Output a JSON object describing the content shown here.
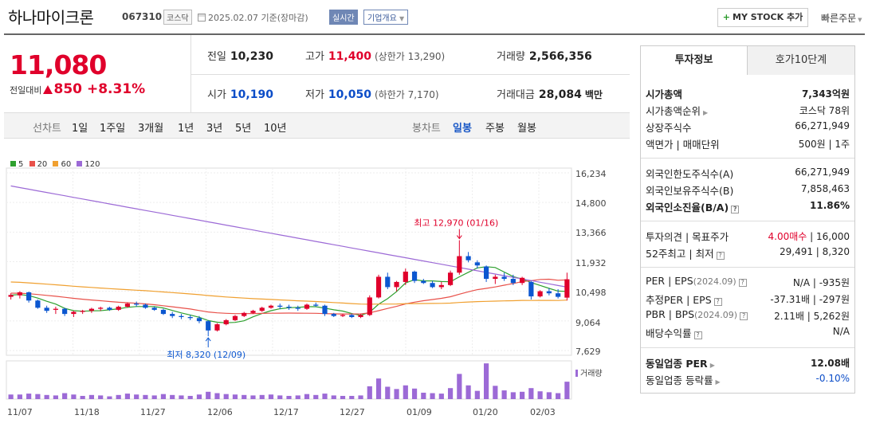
{
  "header": {
    "name": "하나마이크론",
    "code": "067310",
    "market": "코스닥",
    "date": "2025.02.07 기준(장마감)",
    "realtime": "실시간",
    "overview": "기업개요",
    "mystock": "MY STOCK 추가",
    "quick_order": "빠른주문"
  },
  "price": {
    "current": "11,080",
    "change_label": "전일대비",
    "change_amount": "850",
    "change_pct": "+8.31%",
    "prev_close_label": "전일",
    "prev_close": "10,230",
    "open_label": "시가",
    "open": "10,190",
    "high_label": "고가",
    "high": "11,400",
    "upper_limit": "(상한가 13,290)",
    "low_label": "저가",
    "low": "10,050",
    "lower_limit": "(하한가 7,170)",
    "volume_label": "거래량",
    "volume": "2,566,356",
    "amount_label": "거래대금",
    "amount": "28,084",
    "amount_unit": "백만"
  },
  "periods": {
    "line_label": "선차트",
    "line_items": [
      "1일",
      "1주일",
      "3개월",
      "1년",
      "3년",
      "5년",
      "10년"
    ],
    "candle_label": "봉차트",
    "candle_items": [
      "일봉",
      "주봉",
      "월봉"
    ],
    "selected": "일봉"
  },
  "chart_data": {
    "type": "candlestick",
    "legend": [
      {
        "name": "5",
        "color": "#2ea02e"
      },
      {
        "name": "20",
        "color": "#e8514a"
      },
      {
        "name": "60",
        "color": "#f0a030"
      },
      {
        "name": "120",
        "color": "#9c6ad6"
      }
    ],
    "y_ticks": [
      "16,234",
      "14,800",
      "13,366",
      "11,932",
      "10,498",
      "9,064",
      "7,629"
    ],
    "ylim": [
      7629,
      16234
    ],
    "x_ticks": [
      "11/07",
      "11/18",
      "11/27",
      "12/06",
      "12/17",
      "12/27",
      "01/09",
      "01/20",
      "02/03"
    ],
    "volume_label": "거래량",
    "annotation_high": "최고 12,970 (01/16)",
    "annotation_low": "최저 8,320 (12/09)",
    "candles": [
      [
        10230,
        10400,
        10100,
        10320,
        1.0
      ],
      [
        10300,
        10500,
        10150,
        10450,
        1.0
      ],
      [
        10450,
        10480,
        9950,
        10050,
        1.2
      ],
      [
        10050,
        10100,
        9650,
        9700,
        1.1
      ],
      [
        9700,
        9800,
        9450,
        9550,
        0.9
      ],
      [
        9600,
        9750,
        9400,
        9650,
        0.8
      ],
      [
        9650,
        9700,
        9300,
        9400,
        1.3
      ],
      [
        9400,
        9550,
        9250,
        9500,
        1.0
      ],
      [
        9500,
        9600,
        9400,
        9550,
        0.7
      ],
      [
        9550,
        9700,
        9450,
        9650,
        0.9
      ],
      [
        9650,
        9750,
        9550,
        9700,
        0.8
      ],
      [
        9700,
        9750,
        9550,
        9600,
        0.6
      ],
      [
        9600,
        9800,
        9550,
        9750,
        0.9
      ],
      [
        9750,
        9950,
        9700,
        9900,
        1.2
      ],
      [
        9900,
        10000,
        9750,
        9850,
        1.0
      ],
      [
        9850,
        9900,
        9650,
        9700,
        0.9
      ],
      [
        9700,
        9750,
        9550,
        9600,
        0.8
      ],
      [
        9600,
        9650,
        9350,
        9400,
        1.1
      ],
      [
        9400,
        9500,
        9200,
        9300,
        0.9
      ],
      [
        9300,
        9400,
        9150,
        9250,
        0.8
      ],
      [
        9250,
        9350,
        9100,
        9200,
        0.7
      ],
      [
        9200,
        9300,
        8950,
        9050,
        1.0
      ],
      [
        9050,
        9100,
        8320,
        8600,
        1.6
      ],
      [
        8600,
        8950,
        8550,
        8900,
        1.3
      ],
      [
        8900,
        9150,
        8850,
        9100,
        1.1
      ],
      [
        9100,
        9350,
        9050,
        9300,
        1.0
      ],
      [
        9300,
        9500,
        9250,
        9450,
        0.9
      ],
      [
        9450,
        9600,
        9400,
        9550,
        0.8
      ],
      [
        9550,
        9750,
        9500,
        9700,
        0.9
      ],
      [
        9700,
        9850,
        9650,
        9800,
        1.0
      ],
      [
        9800,
        9900,
        9650,
        9750,
        0.8
      ],
      [
        9750,
        9850,
        9600,
        9700,
        0.7
      ],
      [
        9700,
        9800,
        9550,
        9650,
        0.8
      ],
      [
        9650,
        9900,
        9600,
        9850,
        1.1
      ],
      [
        9850,
        9950,
        9750,
        9800,
        0.9
      ],
      [
        9800,
        9850,
        9300,
        9400,
        1.2
      ],
      [
        9400,
        9450,
        9250,
        9300,
        0.8
      ],
      [
        9300,
        9400,
        9250,
        9350,
        0.7
      ],
      [
        9350,
        9400,
        9200,
        9250,
        0.7
      ],
      [
        9250,
        9400,
        9200,
        9350,
        0.8
      ],
      [
        9350,
        10300,
        9300,
        10200,
        2.8
      ],
      [
        10200,
        11300,
        10150,
        11200,
        4.5
      ],
      [
        11200,
        11400,
        10600,
        10700,
        2.7
      ],
      [
        10700,
        11000,
        10500,
        10950,
        2.2
      ],
      [
        10950,
        11600,
        10800,
        11450,
        3.0
      ],
      [
        11450,
        11500,
        10900,
        11000,
        2.3
      ],
      [
        11000,
        11100,
        10850,
        10900,
        1.4
      ],
      [
        10900,
        11000,
        10650,
        10700,
        1.3
      ],
      [
        10700,
        10950,
        10600,
        10800,
        1.2
      ],
      [
        10800,
        11500,
        10750,
        11400,
        2.4
      ],
      [
        11400,
        12970,
        11300,
        12200,
        5.5
      ],
      [
        12200,
        12400,
        11900,
        12000,
        3.0
      ],
      [
        11900,
        12000,
        11600,
        11750,
        1.8
      ],
      [
        11700,
        11750,
        10950,
        11100,
        7.8
      ],
      [
        11100,
        11300,
        10850,
        11200,
        2.9
      ],
      [
        11200,
        11400,
        11000,
        11100,
        1.9
      ],
      [
        11100,
        11300,
        10800,
        10900,
        1.5
      ],
      [
        10900,
        11200,
        10800,
        11150,
        1.6
      ],
      [
        10950,
        11000,
        10100,
        10250,
        2.4
      ],
      [
        10250,
        10550,
        10200,
        10500,
        1.7
      ],
      [
        10500,
        10650,
        10300,
        10400,
        1.5
      ],
      [
        10400,
        10600,
        10150,
        10230,
        1.3
      ],
      [
        10190,
        11400,
        10050,
        11080,
        3.8
      ]
    ]
  },
  "invest_info": {
    "tab_active": "투자정보",
    "tab_other": "호가10단계",
    "rows": [
      {
        "l": "시가총액",
        "r": "7,343억원"
      },
      {
        "l": "시가총액순위",
        "r": "코스닥 78위"
      },
      {
        "l": "상장주식수",
        "r": "66,271,949"
      },
      {
        "l": "액면가 | 매매단위",
        "r": "500원 | 1주"
      },
      {
        "l": "외국인한도주식수(A)",
        "r": "66,271,949"
      },
      {
        "l": "외국인보유주식수(B)",
        "r": "7,858,463"
      },
      {
        "l": "외국인소진율(B/A)",
        "r": "11.86%"
      },
      {
        "l": "투자의견 | 목표주가",
        "r1": "4.00매수",
        "r2": " | 16,000"
      },
      {
        "l": "52주최고 | 최저",
        "r": "29,491 | 8,320"
      },
      {
        "l": "PER | EPS",
        "lsub": "(2024.09)",
        "r": "N/A | -935원"
      },
      {
        "l": "추정PER | EPS",
        "r": "-37.31배 | -297원"
      },
      {
        "l": "PBR | BPS",
        "lsub": "(2024.09)",
        "r": "2.11배 | 5,262원"
      },
      {
        "l": "배당수익률",
        "r": "N/A"
      },
      {
        "l": "동일업종 PER",
        "r": "12.08배"
      },
      {
        "l": "동일업종 등락률",
        "r": "-0.10%"
      }
    ]
  }
}
